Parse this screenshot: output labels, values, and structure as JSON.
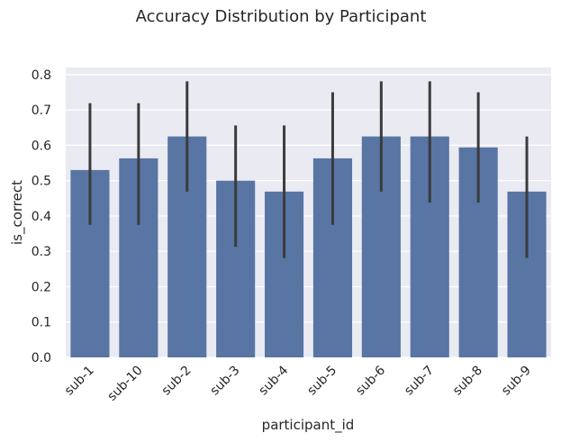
{
  "chart_data": {
    "type": "bar",
    "title": "Accuracy Distribution by Participant",
    "xlabel": "participant_id",
    "ylabel": "is_correct",
    "categories": [
      "sub-1",
      "sub-10",
      "sub-2",
      "sub-3",
      "sub-4",
      "sub-5",
      "sub-6",
      "sub-7",
      "sub-8",
      "sub-9"
    ],
    "values": [
      0.53,
      0.563,
      0.625,
      0.5,
      0.469,
      0.563,
      0.625,
      0.625,
      0.594,
      0.469
    ],
    "error_low": [
      0.375,
      0.375,
      0.469,
      0.313,
      0.281,
      0.375,
      0.469,
      0.438,
      0.438,
      0.281
    ],
    "error_high": [
      0.719,
      0.719,
      0.781,
      0.656,
      0.656,
      0.75,
      0.781,
      0.781,
      0.75,
      0.625
    ],
    "ylim": [
      0,
      0.82
    ],
    "yticks": [
      0.0,
      0.1,
      0.2,
      0.3,
      0.4,
      0.5,
      0.6,
      0.7,
      0.8
    ],
    "ytick_labels": [
      "0.0",
      "0.1",
      "0.2",
      "0.3",
      "0.4",
      "0.5",
      "0.6",
      "0.7",
      "0.8"
    ],
    "grid": true,
    "colors": {
      "bar": "#5875a4",
      "error": "#3b3b3b",
      "panel": "#eaeaf2",
      "grid": "#ffffff"
    }
  }
}
